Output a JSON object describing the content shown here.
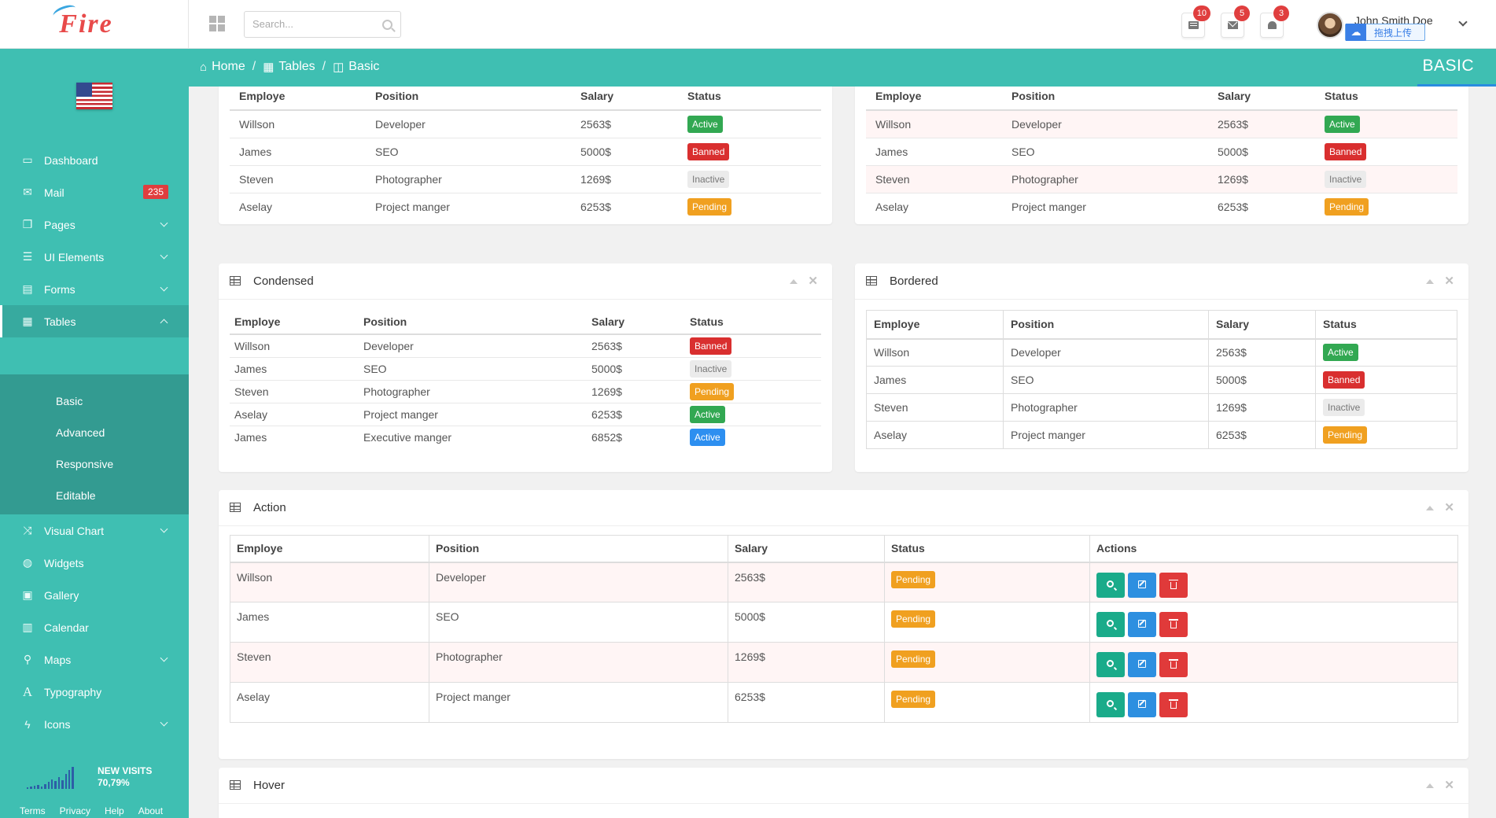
{
  "app": {
    "logo_text": "Fire"
  },
  "search": {
    "placeholder": "Search..."
  },
  "notifications": {
    "messages": "10",
    "mail": "5",
    "alerts": "3"
  },
  "user": {
    "name": "John Smith Doe",
    "upload_label": "拖拽上传"
  },
  "sidebar": {
    "items": [
      {
        "label": "Dashboard",
        "icon": "laptop-icon"
      },
      {
        "label": "Mail",
        "icon": "envelope-icon",
        "badge": "235"
      },
      {
        "label": "Pages",
        "icon": "files-icon"
      },
      {
        "label": "UI Elements",
        "icon": "list-icon"
      },
      {
        "label": "Forms",
        "icon": "form-icon"
      },
      {
        "label": "Tables",
        "icon": "table-icon"
      },
      {
        "label": "Visual Chart",
        "icon": "random-icon"
      },
      {
        "label": "Widgets",
        "icon": "globe-icon"
      },
      {
        "label": "Gallery",
        "icon": "picture-icon"
      },
      {
        "label": "Calendar",
        "icon": "calendar-icon"
      },
      {
        "label": "Maps",
        "icon": "map-marker-icon"
      },
      {
        "label": "Typography",
        "icon": "font-icon"
      },
      {
        "label": "Icons",
        "icon": "bolt-icon"
      }
    ],
    "submenu": [
      "Basic",
      "Advanced",
      "Responsive",
      "Editable"
    ],
    "visits": {
      "label": "NEW VISITS",
      "value": "70,79%",
      "bars": [
        2,
        3,
        4,
        5,
        3,
        6,
        8,
        11,
        9,
        14,
        10,
        18,
        22,
        26
      ]
    },
    "footer": [
      "Terms",
      "Privacy",
      "Help",
      "About"
    ]
  },
  "breadcrumb": {
    "home": "Home",
    "tables": "Tables",
    "basic": "Basic",
    "sep": "/",
    "page_heading": "BASIC"
  },
  "headers": {
    "employe": "Employe",
    "position": "Position",
    "salary": "Salary",
    "status": "Status",
    "actions": "Actions"
  },
  "tables": {
    "basic": [
      {
        "employe": "Willson",
        "position": "Developer",
        "salary": "2563$",
        "status": "Active"
      },
      {
        "employe": "James",
        "position": "SEO",
        "salary": "5000$",
        "status": "Banned"
      },
      {
        "employe": "Steven",
        "position": "Photographer",
        "salary": "1269$",
        "status": "Inactive"
      },
      {
        "employe": "Aselay",
        "position": "Project manger",
        "salary": "6253$",
        "status": "Pending"
      }
    ],
    "striped": [
      {
        "employe": "Willson",
        "position": "Developer",
        "salary": "2563$",
        "status": "Active"
      },
      {
        "employe": "James",
        "position": "SEO",
        "salary": "5000$",
        "status": "Banned"
      },
      {
        "employe": "Steven",
        "position": "Photographer",
        "salary": "1269$",
        "status": "Inactive"
      },
      {
        "employe": "Aselay",
        "position": "Project manger",
        "salary": "6253$",
        "status": "Pending"
      }
    ],
    "condensed": {
      "title": "Condensed",
      "rows": [
        {
          "employe": "Willson",
          "position": "Developer",
          "salary": "2563$",
          "status": "Banned"
        },
        {
          "employe": "James",
          "position": "SEO",
          "salary": "5000$",
          "status": "Inactive"
        },
        {
          "employe": "Steven",
          "position": "Photographer",
          "salary": "1269$",
          "status": "Pending"
        },
        {
          "employe": "Aselay",
          "position": "Project manger",
          "salary": "6253$",
          "status": "Active"
        },
        {
          "employe": "James",
          "position": "Executive manger",
          "salary": "6852$",
          "status": "Active",
          "variant": "ActiveBlue"
        }
      ]
    },
    "bordered": {
      "title": "Bordered",
      "rows": [
        {
          "employe": "Willson",
          "position": "Developer",
          "salary": "2563$",
          "status": "Active"
        },
        {
          "employe": "James",
          "position": "SEO",
          "salary": "5000$",
          "status": "Banned"
        },
        {
          "employe": "Steven",
          "position": "Photographer",
          "salary": "1269$",
          "status": "Inactive"
        },
        {
          "employe": "Aselay",
          "position": "Project manger",
          "salary": "6253$",
          "status": "Pending"
        }
      ]
    },
    "action": {
      "title": "Action",
      "rows": [
        {
          "employe": "Willson",
          "position": "Developer",
          "salary": "2563$",
          "status": "Pending"
        },
        {
          "employe": "James",
          "position": "SEO",
          "salary": "5000$",
          "status": "Pending"
        },
        {
          "employe": "Steven",
          "position": "Photographer",
          "salary": "1269$",
          "status": "Pending"
        },
        {
          "employe": "Aselay",
          "position": "Project manger",
          "salary": "6253$",
          "status": "Pending"
        }
      ]
    },
    "hover": {
      "title": "Hover"
    }
  }
}
